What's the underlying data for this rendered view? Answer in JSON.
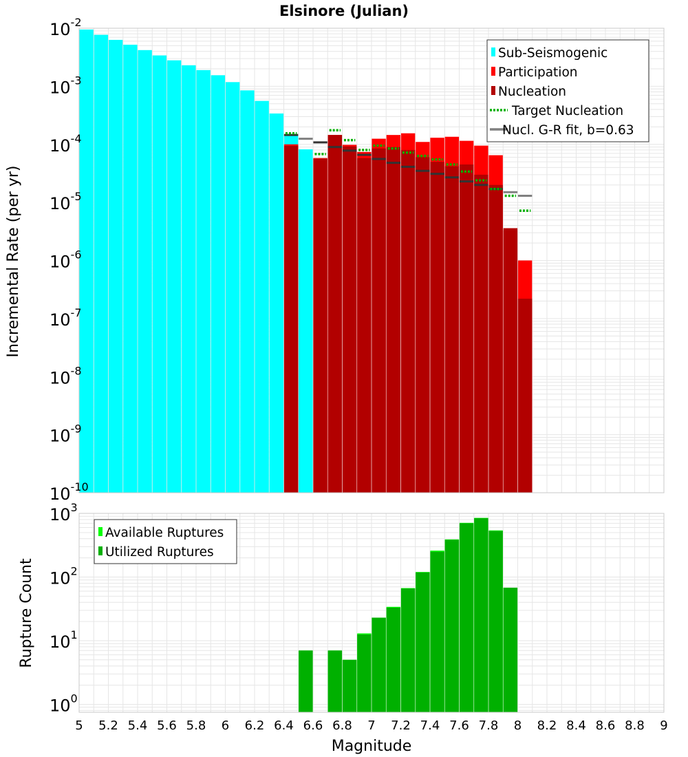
{
  "chart_data": [
    {
      "type": "bar",
      "title": "Elsinore (Julian)",
      "xlabel": "",
      "ylabel": "Incremental Rate (per yr)",
      "yscale": "log",
      "ylim": [
        1e-10,
        0.01
      ],
      "xlim": [
        5,
        9
      ],
      "y_tick_labels": [
        {
          "base": "10",
          "exp": "-10"
        },
        {
          "base": "10",
          "exp": "-9"
        },
        {
          "base": "10",
          "exp": "-8"
        },
        {
          "base": "10",
          "exp": "-7"
        },
        {
          "base": "10",
          "exp": "-6"
        },
        {
          "base": "10",
          "exp": "-5"
        },
        {
          "base": "10",
          "exp": "-4"
        },
        {
          "base": "10",
          "exp": "-3"
        },
        {
          "base": "10",
          "exp": "-2"
        }
      ],
      "legend_position": "top-right",
      "legend": [
        {
          "label": "Sub-Seismogenic",
          "color": "#00ffff",
          "style": "bar"
        },
        {
          "label": "Participation",
          "color": "#ff0000",
          "style": "bar"
        },
        {
          "label": "Nucleation",
          "color": "#b20000",
          "style": "bar"
        },
        {
          "label": "Target Nucleation",
          "color": "#00b000",
          "style": "dotted-line"
        },
        {
          "label": "Nucl. G-R fit, b=0.63",
          "color": "#808080",
          "style": "line"
        }
      ],
      "series": [
        {
          "name": "Sub-Seismogenic",
          "color": "#00ffff",
          "x": [
            5.05,
            5.15,
            5.25,
            5.35,
            5.45,
            5.55,
            5.65,
            5.75,
            5.85,
            5.95,
            6.05,
            6.15,
            6.25,
            6.35,
            6.45,
            6.55
          ],
          "values": [
            0.0095,
            0.0077,
            0.0063,
            0.0052,
            0.0042,
            0.0034,
            0.0028,
            0.0023,
            0.0019,
            0.00155,
            0.00118,
            0.00085,
            0.00056,
            0.00034,
            0.000145,
            8.2e-05
          ]
        },
        {
          "name": "Participation",
          "color": "#ff0000",
          "x": [
            6.45,
            6.65,
            6.75,
            6.85,
            6.95,
            7.05,
            7.15,
            7.25,
            7.35,
            7.45,
            7.55,
            7.65,
            7.75,
            7.85,
            7.95,
            8.05
          ],
          "values": [
            0.0001,
            5.8e-05,
            0.000145,
            9.8e-05,
            7.4e-05,
            0.000125,
            0.000145,
            0.000155,
            0.00011,
            0.00013,
            0.000135,
            0.000115,
            9.5e-05,
            6.5e-05,
            3.3e-06,
            1e-06
          ]
        },
        {
          "name": "Nucleation",
          "color": "#b20000",
          "x": [
            6.45,
            6.65,
            6.75,
            6.85,
            6.95,
            7.05,
            7.15,
            7.25,
            7.35,
            7.45,
            7.55,
            7.65,
            7.75,
            7.85,
            7.95,
            8.05
          ],
          "values": [
            9.5e-05,
            5.7e-05,
            0.000145,
            9.2e-05,
            5.8e-05,
            8.5e-05,
            9e-05,
            8e-05,
            6e-05,
            5e-05,
            4.2e-05,
            4.5e-05,
            3e-05,
            2e-05,
            3.6e-06,
            2.2e-07
          ]
        },
        {
          "name": "Target Nucleation",
          "color": "#00b000",
          "x": [
            6.45,
            6.55,
            6.65,
            6.75,
            6.85,
            6.95,
            7.05,
            7.15,
            7.25,
            7.35,
            7.45,
            7.55,
            7.65,
            7.75,
            7.85,
            7.95,
            8.05
          ],
          "values": [
            0.000155,
            0.0,
            6.8e-05,
            0.000175,
            0.000118,
            8e-05,
            9.5e-05,
            8.5e-05,
            7.2e-05,
            6.3e-05,
            5.5e-05,
            4.5e-05,
            3.4e-05,
            2.4e-05,
            1.7e-05,
            1.3e-05,
            7.2e-06
          ]
        },
        {
          "name": "Nucl. G-R fit, b=0.63",
          "color": "#808080",
          "x": [
            6.45,
            6.55,
            6.65,
            6.75,
            6.85,
            6.95,
            7.05,
            7.15,
            7.25,
            7.35,
            7.45,
            7.55,
            7.65,
            7.75,
            7.85,
            7.95,
            8.05
          ],
          "values": [
            0.000145,
            0.000125,
            0.000108,
            9e-05,
            7.8e-05,
            6.6e-05,
            5.6e-05,
            4.8e-05,
            4.1e-05,
            3.5e-05,
            3.1e-05,
            2.7e-05,
            2.3e-05,
            2e-05,
            1.7e-05,
            1.5e-05,
            1.3e-05
          ]
        }
      ]
    },
    {
      "type": "bar",
      "title": "",
      "xlabel": "Magnitude",
      "ylabel": "Rupture Count",
      "yscale": "log",
      "ylim": [
        0.75,
        1000
      ],
      "xlim": [
        5,
        9
      ],
      "x_tick_labels": [
        "5",
        "5.2",
        "5.4",
        "5.6",
        "5.8",
        "6",
        "6.2",
        "6.4",
        "6.6",
        "6.8",
        "7",
        "7.2",
        "7.4",
        "7.6",
        "7.8",
        "8",
        "8.2",
        "8.4",
        "8.6",
        "8.8",
        "9"
      ],
      "y_tick_labels": [
        {
          "base": "10",
          "exp": "0"
        },
        {
          "base": "10",
          "exp": "1"
        },
        {
          "base": "10",
          "exp": "2"
        },
        {
          "base": "10",
          "exp": "3"
        }
      ],
      "legend_position": "top-left",
      "legend": [
        {
          "label": "Available Ruptures",
          "color": "#00ff00",
          "style": "bar"
        },
        {
          "label": "Utilized Ruptures",
          "color": "#00b000",
          "style": "bar"
        }
      ],
      "series": [
        {
          "name": "Available Ruptures",
          "color": "#00ff00",
          "x": [
            6.55,
            6.75,
            6.85,
            6.95,
            7.05,
            7.15,
            7.25,
            7.35,
            7.45,
            7.55,
            7.65,
            7.75,
            7.85,
            7.95
          ],
          "values": [
            7,
            7,
            5,
            13,
            23,
            34,
            67,
            120,
            260,
            390,
            710,
            850,
            540,
            68
          ]
        },
        {
          "name": "Utilized Ruptures",
          "color": "#00b000",
          "x": [
            6.55,
            6.75,
            6.85,
            6.95,
            7.05,
            7.15,
            7.25,
            7.35,
            7.45,
            7.55,
            7.65,
            7.75,
            7.85,
            7.95
          ],
          "values": [
            7,
            7,
            5,
            12.5,
            23,
            33,
            66,
            118,
            250,
            385,
            700,
            840,
            530,
            68
          ]
        }
      ]
    }
  ]
}
